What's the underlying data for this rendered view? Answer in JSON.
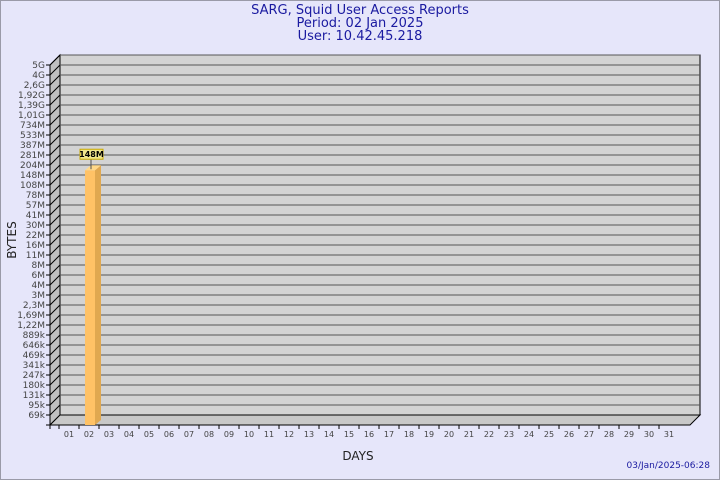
{
  "header": {
    "title": "SARG, Squid User Access Reports",
    "period": "Period: 02 Jan 2025",
    "user": "User: 10.42.45.218"
  },
  "timestamp": "03/Jan/2025-06:28",
  "colors": {
    "background": "#e6e6fa",
    "plot": "#d3d3d3",
    "bar": "#ffc266",
    "bar_side": "#e0a850",
    "title": "#1a1aa0"
  },
  "chart_data": {
    "type": "bar",
    "xlabel": "DAYS",
    "ylabel": "BYTES",
    "yscale": "log",
    "grid": true,
    "categories": [
      "01",
      "02",
      "03",
      "04",
      "05",
      "06",
      "07",
      "08",
      "09",
      "10",
      "11",
      "12",
      "13",
      "14",
      "15",
      "16",
      "17",
      "18",
      "19",
      "20",
      "21",
      "22",
      "23",
      "24",
      "25",
      "26",
      "27",
      "28",
      "29",
      "30",
      "31"
    ],
    "yticks": [
      "5G",
      "4G",
      "2,6G",
      "1,92G",
      "1,39G",
      "1,01G",
      "734M",
      "533M",
      "387M",
      "281M",
      "204M",
      "148M",
      "108M",
      "78M",
      "57M",
      "41M",
      "30M",
      "22M",
      "16M",
      "11M",
      "8M",
      "6M",
      "4M",
      "3M",
      "2,3M",
      "1,69M",
      "1,22M",
      "889k",
      "646k",
      "469k",
      "341k",
      "247k",
      "180k",
      "131k",
      "95k",
      "69k"
    ],
    "bars": [
      {
        "category": "02",
        "value": 148000000,
        "label": "148M"
      }
    ]
  }
}
